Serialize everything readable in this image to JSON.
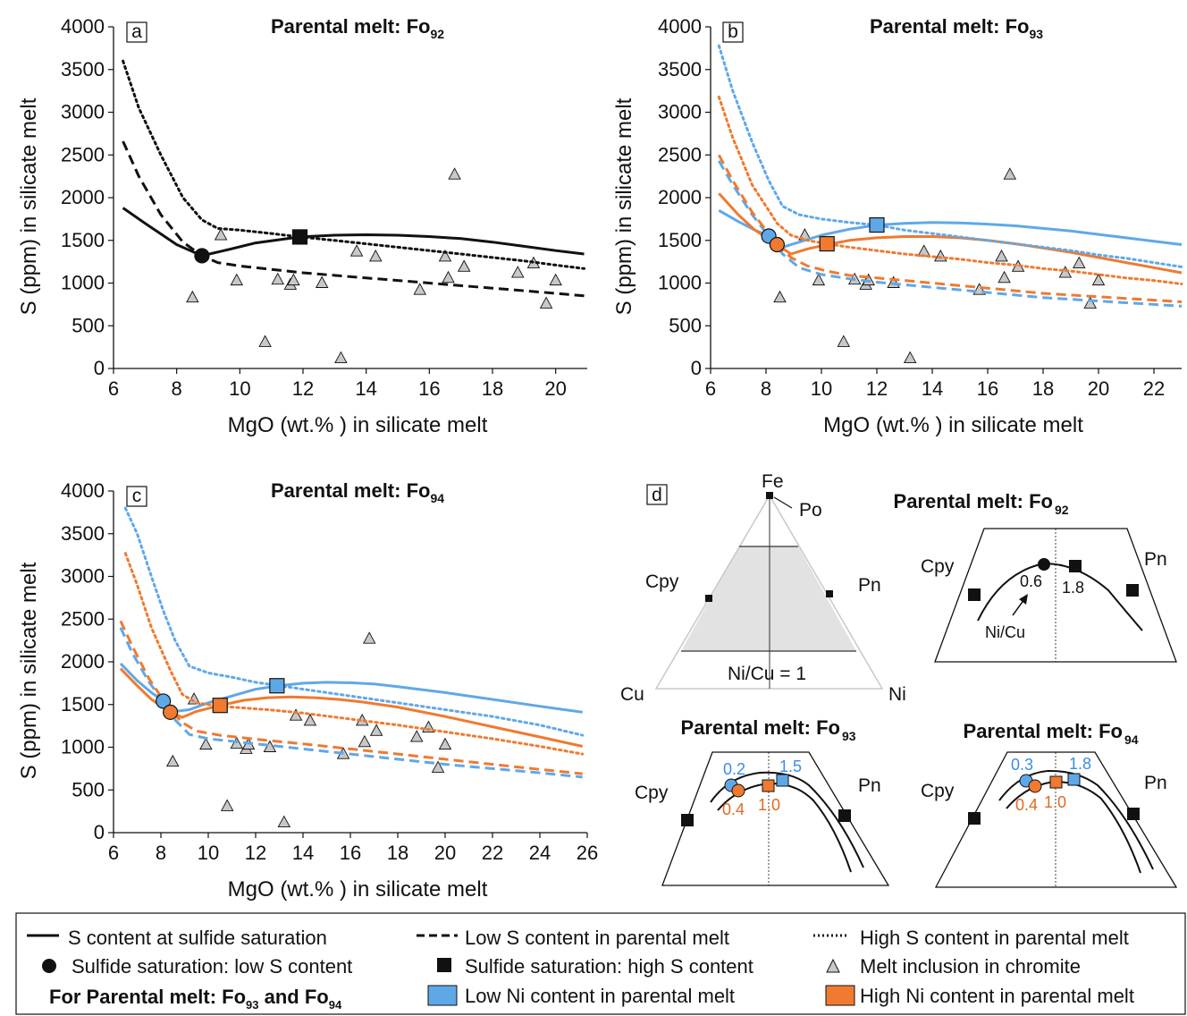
{
  "colors": {
    "blue": "#5fa8e8",
    "orange": "#ef7a30",
    "black": "#111111",
    "tri": "#c8c8c8",
    "shade": "#e2e2e2"
  },
  "chart_data": [
    {
      "panel": "a",
      "type": "line",
      "title": "Parental melt: Fo",
      "title_sub": "92",
      "xlabel": "MgO (wt.% ) in silicate melt",
      "ylabel": "S (ppm) in silicate melt",
      "xlim": [
        6,
        21
      ],
      "ylim": [
        0,
        4000
      ],
      "xticks": [
        6,
        8,
        10,
        12,
        14,
        16,
        18,
        20
      ],
      "yticks": [
        0,
        500,
        1000,
        1500,
        2000,
        2500,
        3000,
        3500,
        4000
      ],
      "series": [
        {
          "style": "solid",
          "color": "black",
          "x": [
            6.3,
            7.0,
            8.0,
            8.8,
            9.5,
            10.5,
            11.9,
            13,
            14,
            15,
            16,
            17,
            18,
            19,
            20,
            20.9
          ],
          "y": [
            1880,
            1700,
            1450,
            1320,
            1380,
            1470,
            1540,
            1560,
            1565,
            1560,
            1545,
            1520,
            1480,
            1430,
            1380,
            1340
          ]
        },
        {
          "style": "dashed",
          "color": "black",
          "x": [
            6.3,
            6.8,
            7.5,
            8.2,
            8.8,
            9.3,
            10,
            11,
            12,
            13,
            14,
            15,
            16,
            17,
            18,
            19,
            20,
            20.9
          ],
          "y": [
            2660,
            2250,
            1800,
            1480,
            1320,
            1240,
            1200,
            1160,
            1120,
            1090,
            1060,
            1030,
            1000,
            970,
            940,
            910,
            880,
            850
          ]
        },
        {
          "style": "dotted",
          "color": "black",
          "x": [
            6.3,
            6.8,
            7.5,
            8.2,
            8.8,
            9.3,
            10,
            11,
            11.9,
            13,
            14,
            15,
            16,
            17,
            18,
            19,
            20,
            20.9
          ],
          "y": [
            3600,
            3050,
            2500,
            2000,
            1740,
            1640,
            1620,
            1580,
            1540,
            1500,
            1460,
            1420,
            1380,
            1340,
            1300,
            1260,
            1210,
            1170
          ]
        }
      ],
      "markers": [
        {
          "shape": "circle",
          "color": "black",
          "x": 8.8,
          "y": 1320
        },
        {
          "shape": "square",
          "color": "black",
          "x": 11.9,
          "y": 1540
        }
      ],
      "inclusions": {
        "x": [
          8.5,
          9.4,
          9.9,
          10.8,
          11.2,
          11.6,
          11.7,
          12.6,
          13.2,
          13.7,
          14.3,
          15.7,
          16.5,
          16.6,
          16.8,
          17.1,
          18.8,
          19.3,
          19.7,
          20.0
        ],
        "y": [
          830,
          1560,
          1030,
          310,
          1040,
          980,
          1030,
          1000,
          120,
          1370,
          1310,
          920,
          1310,
          1060,
          2270,
          1190,
          1120,
          1230,
          760,
          1030
        ]
      }
    },
    {
      "panel": "b",
      "type": "line",
      "title": "Parental melt: Fo",
      "title_sub": "93",
      "xlabel": "MgO (wt.% ) in silicate melt",
      "ylabel": "S (ppm) in silicate melt",
      "xlim": [
        6,
        23
      ],
      "ylim": [
        0,
        4000
      ],
      "xticks": [
        6,
        8,
        10,
        12,
        14,
        16,
        18,
        20,
        22
      ],
      "yticks": [
        0,
        500,
        1000,
        1500,
        2000,
        2500,
        3000,
        3500,
        4000
      ],
      "series": [
        {
          "style": "solid",
          "color": "blue",
          "x": [
            6.3,
            7.0,
            7.6,
            8.1,
            8.6,
            9.2,
            10,
            11,
            12,
            13,
            14,
            15,
            16,
            17,
            18,
            19,
            20,
            21,
            22,
            23
          ],
          "y": [
            1850,
            1720,
            1620,
            1550,
            1420,
            1480,
            1560,
            1630,
            1680,
            1700,
            1710,
            1705,
            1690,
            1670,
            1640,
            1610,
            1570,
            1530,
            1490,
            1450
          ]
        },
        {
          "style": "solid",
          "color": "orange",
          "x": [
            6.3,
            7.0,
            7.6,
            8.4,
            8.9,
            9.5,
            10.2,
            11,
            12,
            13,
            14,
            15,
            16,
            17,
            18,
            19,
            20,
            21,
            22,
            23
          ],
          "y": [
            2050,
            1800,
            1620,
            1450,
            1340,
            1400,
            1450,
            1500,
            1530,
            1545,
            1545,
            1530,
            1500,
            1460,
            1410,
            1360,
            1300,
            1240,
            1180,
            1120
          ]
        },
        {
          "style": "dashed",
          "color": "blue",
          "x": [
            6.3,
            6.8,
            7.5,
            8.1,
            8.6,
            9.2,
            10,
            11,
            12,
            13,
            14,
            15,
            16,
            17,
            18,
            19,
            20,
            21,
            22,
            23
          ],
          "y": [
            2430,
            2150,
            1800,
            1550,
            1340,
            1180,
            1100,
            1050,
            1010,
            980,
            950,
            920,
            890,
            860,
            830,
            810,
            790,
            770,
            750,
            730
          ]
        },
        {
          "style": "dashed",
          "color": "orange",
          "x": [
            6.3,
            6.8,
            7.5,
            8.4,
            8.9,
            9.5,
            10.2,
            11,
            12,
            13,
            14,
            15,
            16,
            17,
            18,
            19,
            20,
            21,
            22,
            23
          ],
          "y": [
            2500,
            2200,
            1830,
            1450,
            1300,
            1200,
            1140,
            1090,
            1060,
            1030,
            1000,
            970,
            940,
            910,
            880,
            860,
            840,
            820,
            800,
            780
          ]
        },
        {
          "style": "dotted",
          "color": "blue",
          "x": [
            6.3,
            6.8,
            7.5,
            8.1,
            8.6,
            9.2,
            10,
            11,
            12,
            13,
            14,
            15,
            16,
            17,
            18,
            19,
            20,
            21,
            22,
            23
          ],
          "y": [
            3780,
            3250,
            2650,
            2200,
            1900,
            1800,
            1750,
            1710,
            1680,
            1620,
            1580,
            1540,
            1500,
            1460,
            1420,
            1380,
            1330,
            1290,
            1240,
            1190
          ]
        },
        {
          "style": "dotted",
          "color": "orange",
          "x": [
            6.3,
            6.8,
            7.5,
            8.4,
            8.9,
            9.5,
            10.2,
            11,
            12,
            13,
            14,
            15,
            16,
            17,
            18,
            19,
            20,
            21,
            22,
            23
          ],
          "y": [
            3180,
            2700,
            2150,
            1700,
            1560,
            1500,
            1460,
            1420,
            1380,
            1340,
            1310,
            1280,
            1240,
            1210,
            1170,
            1140,
            1100,
            1060,
            1030,
            990
          ]
        }
      ],
      "markers": [
        {
          "shape": "circle",
          "color": "blue",
          "x": 8.1,
          "y": 1550
        },
        {
          "shape": "circle",
          "color": "orange",
          "x": 8.4,
          "y": 1450
        },
        {
          "shape": "square",
          "color": "blue",
          "x": 12.0,
          "y": 1680
        },
        {
          "shape": "square",
          "color": "orange",
          "x": 10.2,
          "y": 1460
        }
      ],
      "inclusions": {
        "x": [
          8.5,
          9.4,
          9.9,
          10.8,
          11.2,
          11.6,
          11.7,
          12.6,
          13.2,
          13.7,
          14.3,
          15.7,
          16.5,
          16.6,
          16.8,
          17.1,
          18.8,
          19.3,
          19.7,
          20.0
        ],
        "y": [
          830,
          1560,
          1030,
          310,
          1040,
          980,
          1030,
          1000,
          120,
          1370,
          1310,
          920,
          1310,
          1060,
          2270,
          1190,
          1120,
          1230,
          760,
          1030
        ]
      }
    },
    {
      "panel": "c",
      "type": "line",
      "title": "Parental melt: Fo",
      "title_sub": "94",
      "xlabel": "MgO (wt.% ) in silicate melt",
      "ylabel": "S (ppm) in silicate melt",
      "xlim": [
        6,
        26
      ],
      "ylim": [
        0,
        4000
      ],
      "xticks": [
        6,
        8,
        10,
        12,
        14,
        16,
        18,
        20,
        22,
        24,
        26
      ],
      "yticks": [
        0,
        500,
        1000,
        1500,
        2000,
        2500,
        3000,
        3500,
        4000
      ],
      "series": [
        {
          "style": "solid",
          "color": "blue",
          "x": [
            6.3,
            7.0,
            7.6,
            8.1,
            8.6,
            9.2,
            10,
            11,
            12,
            13,
            14,
            15,
            16,
            17,
            18,
            20,
            22,
            24,
            25.8
          ],
          "y": [
            1980,
            1780,
            1640,
            1540,
            1420,
            1440,
            1520,
            1600,
            1680,
            1720,
            1750,
            1760,
            1755,
            1740,
            1710,
            1640,
            1560,
            1480,
            1410
          ]
        },
        {
          "style": "solid",
          "color": "orange",
          "x": [
            6.3,
            7.0,
            7.6,
            8.4,
            8.9,
            9.5,
            10.5,
            11.5,
            12.5,
            13.5,
            14.5,
            15.5,
            16.5,
            18,
            20,
            22,
            24,
            25.8
          ],
          "y": [
            1920,
            1720,
            1560,
            1410,
            1350,
            1420,
            1490,
            1550,
            1580,
            1590,
            1580,
            1560,
            1530,
            1470,
            1360,
            1240,
            1120,
            1010
          ]
        },
        {
          "style": "dashed",
          "color": "blue",
          "x": [
            6.3,
            6.8,
            7.5,
            8.1,
            8.6,
            9.2,
            10,
            11,
            12,
            13,
            14,
            16,
            18,
            20,
            22,
            24,
            25.8
          ],
          "y": [
            2400,
            2100,
            1760,
            1540,
            1320,
            1150,
            1100,
            1070,
            1040,
            1010,
            980,
            920,
            860,
            800,
            750,
            700,
            650
          ]
        },
        {
          "style": "dashed",
          "color": "orange",
          "x": [
            6.3,
            6.8,
            7.5,
            8.4,
            8.9,
            9.5,
            10.5,
            11.5,
            12.5,
            14,
            16,
            18,
            20,
            22,
            24,
            25.8
          ],
          "y": [
            2480,
            2180,
            1800,
            1430,
            1290,
            1190,
            1140,
            1110,
            1080,
            1040,
            980,
            920,
            860,
            800,
            740,
            690
          ]
        },
        {
          "style": "dotted",
          "color": "blue",
          "x": [
            6.5,
            7.0,
            7.6,
            8.1,
            8.6,
            9.2,
            10,
            11,
            12,
            13,
            14,
            16,
            18,
            20,
            22,
            24,
            25.8
          ],
          "y": [
            3800,
            3500,
            3000,
            2600,
            2250,
            1950,
            1870,
            1820,
            1760,
            1720,
            1680,
            1600,
            1520,
            1440,
            1360,
            1260,
            1140
          ]
        },
        {
          "style": "dotted",
          "color": "orange",
          "x": [
            6.5,
            7.0,
            7.6,
            8.4,
            8.9,
            9.5,
            10.5,
            11.5,
            12.5,
            14,
            16,
            18,
            20,
            22,
            24,
            25.8
          ],
          "y": [
            3270,
            2900,
            2400,
            1900,
            1620,
            1520,
            1480,
            1460,
            1440,
            1400,
            1330,
            1260,
            1180,
            1100,
            1010,
            920
          ]
        }
      ],
      "markers": [
        {
          "shape": "circle",
          "color": "blue",
          "x": 8.1,
          "y": 1540
        },
        {
          "shape": "circle",
          "color": "orange",
          "x": 8.4,
          "y": 1410
        },
        {
          "shape": "square",
          "color": "blue",
          "x": 12.9,
          "y": 1720
        },
        {
          "shape": "square",
          "color": "orange",
          "x": 10.5,
          "y": 1490
        }
      ],
      "inclusions": {
        "x": [
          8.5,
          9.4,
          9.9,
          10.8,
          11.2,
          11.6,
          11.7,
          12.6,
          13.2,
          13.7,
          14.3,
          15.7,
          16.5,
          16.6,
          16.8,
          17.1,
          18.8,
          19.3,
          19.7,
          20.0
        ],
        "y": [
          830,
          1560,
          1030,
          310,
          1040,
          980,
          1030,
          1000,
          120,
          1370,
          1310,
          920,
          1310,
          1060,
          2270,
          1190,
          1120,
          1230,
          760,
          1030
        ]
      }
    }
  ],
  "panel_d": {
    "letter": "d",
    "ternary": {
      "top": "Fe",
      "left": "Cu",
      "right": "Ni",
      "po": "Po",
      "cpy": "Cpy",
      "pn": "Pn",
      "ratio_line": "Ni/Cu = 1"
    },
    "fo92": {
      "title": "Parental melt: Fo",
      "sub": "92",
      "cpy": "Cpy",
      "pn": "Pn",
      "low": "0.6",
      "high": "1.8",
      "arrow": "Ni/Cu"
    },
    "fo93": {
      "title": "Parental melt: Fo",
      "sub": "93",
      "cpy": "Cpy",
      "pn": "Pn",
      "blue_low": "0.2",
      "blue_high": "1.5",
      "orange_low": "0.4",
      "orange_high": "1.0"
    },
    "fo94": {
      "title": "Parental melt: Fo",
      "sub": "94",
      "cpy": "Cpy",
      "pn": "Pn",
      "blue_low": "0.3",
      "blue_high": "1.8",
      "orange_low": "0.4",
      "orange_high": "1.0"
    }
  },
  "legend": {
    "solid": "S content at sulfide saturation",
    "dashed": "Low S content in parental melt",
    "dotted": "High S content in parental melt",
    "circle": "Sulfide saturation: low S content",
    "square": "Sulfide saturation: high S content",
    "triangle": "Melt inclusion in chromite",
    "for_label": "For Parental melt: Fo",
    "for_sub1": "93",
    "for_and": " and Fo",
    "for_sub2": "94",
    "low_ni": "Low Ni content in parental melt",
    "high_ni": "High Ni content in parental melt"
  }
}
